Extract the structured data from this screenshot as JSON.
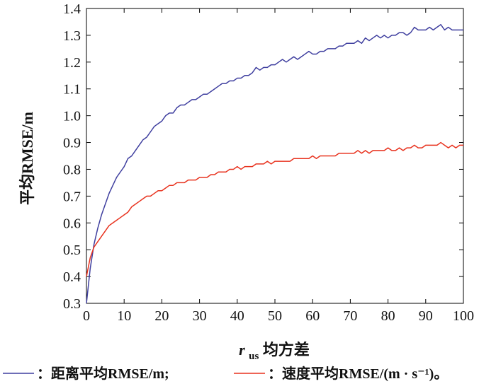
{
  "chart_data": {
    "type": "line",
    "xlabel_main": "r",
    "xlabel_sub": "us",
    "xlabel_rest": "均方差",
    "ylabel": "平均RMSE/m",
    "xlim": [
      0,
      100
    ],
    "ylim": [
      0.3,
      1.4
    ],
    "x_ticks": [
      0,
      10,
      20,
      30,
      40,
      50,
      60,
      70,
      80,
      90,
      100
    ],
    "x_tick_labels": [
      "0",
      "10",
      "20",
      "30",
      "40",
      "50",
      "60",
      "70",
      "80",
      "90",
      "100"
    ],
    "y_ticks": [
      0.3,
      0.4,
      0.5,
      0.6,
      0.7,
      0.8,
      0.9,
      1.0,
      1.1,
      1.2,
      1.3,
      1.4
    ],
    "y_tick_labels": [
      "0.3",
      "0.4",
      "0.5",
      "0.6",
      "0.7",
      "0.8",
      "0.9",
      "1.0",
      "1.1",
      "1.2",
      "1.3",
      "1.4"
    ],
    "grid": false,
    "legend_position": "bottom",
    "series": [
      {
        "name": "：距离平均RMSE/m;",
        "color": "#3f3f9f",
        "x": [
          0,
          1,
          2,
          3,
          4,
          5,
          6,
          7,
          8,
          9,
          10,
          11,
          12,
          13,
          14,
          15,
          16,
          17,
          18,
          19,
          20,
          21,
          22,
          23,
          24,
          25,
          26,
          27,
          28,
          29,
          30,
          31,
          32,
          33,
          34,
          35,
          36,
          37,
          38,
          39,
          40,
          41,
          42,
          43,
          44,
          45,
          46,
          47,
          48,
          49,
          50,
          51,
          52,
          53,
          54,
          55,
          56,
          57,
          58,
          59,
          60,
          61,
          62,
          63,
          64,
          65,
          66,
          67,
          68,
          69,
          70,
          71,
          72,
          73,
          74,
          75,
          76,
          77,
          78,
          79,
          80,
          81,
          82,
          83,
          84,
          85,
          86,
          87,
          88,
          89,
          90,
          91,
          92,
          93,
          94,
          95,
          96,
          97,
          98,
          99,
          100
        ],
        "values": [
          0.3,
          0.43,
          0.52,
          0.58,
          0.63,
          0.67,
          0.71,
          0.74,
          0.77,
          0.79,
          0.81,
          0.84,
          0.85,
          0.87,
          0.89,
          0.91,
          0.92,
          0.94,
          0.96,
          0.97,
          0.98,
          1.0,
          1.01,
          1.01,
          1.03,
          1.04,
          1.04,
          1.05,
          1.06,
          1.06,
          1.07,
          1.08,
          1.08,
          1.09,
          1.1,
          1.11,
          1.12,
          1.12,
          1.13,
          1.13,
          1.14,
          1.14,
          1.15,
          1.15,
          1.16,
          1.18,
          1.17,
          1.18,
          1.18,
          1.19,
          1.19,
          1.2,
          1.21,
          1.2,
          1.21,
          1.22,
          1.21,
          1.22,
          1.23,
          1.24,
          1.23,
          1.23,
          1.24,
          1.24,
          1.25,
          1.25,
          1.25,
          1.26,
          1.26,
          1.27,
          1.27,
          1.27,
          1.28,
          1.27,
          1.29,
          1.28,
          1.29,
          1.3,
          1.29,
          1.3,
          1.29,
          1.3,
          1.3,
          1.31,
          1.31,
          1.3,
          1.31,
          1.33,
          1.32,
          1.32,
          1.32,
          1.33,
          1.32,
          1.33,
          1.34,
          1.32,
          1.33,
          1.32,
          1.32,
          1.32,
          1.32
        ]
      },
      {
        "name": "：速度平均RMSE/(m · s⁻¹)。",
        "color": "#e8321e",
        "x": [
          0,
          1,
          2,
          3,
          4,
          5,
          6,
          7,
          8,
          9,
          10,
          11,
          12,
          13,
          14,
          15,
          16,
          17,
          18,
          19,
          20,
          21,
          22,
          23,
          24,
          25,
          26,
          27,
          28,
          29,
          30,
          31,
          32,
          33,
          34,
          35,
          36,
          37,
          38,
          39,
          40,
          41,
          42,
          43,
          44,
          45,
          46,
          47,
          48,
          49,
          50,
          51,
          52,
          53,
          54,
          55,
          56,
          57,
          58,
          59,
          60,
          61,
          62,
          63,
          64,
          65,
          66,
          67,
          68,
          69,
          70,
          71,
          72,
          73,
          74,
          75,
          76,
          77,
          78,
          79,
          80,
          81,
          82,
          83,
          84,
          85,
          86,
          87,
          88,
          89,
          90,
          91,
          92,
          93,
          94,
          95,
          96,
          97,
          98,
          99,
          100
        ],
        "values": [
          0.4,
          0.47,
          0.51,
          0.53,
          0.55,
          0.57,
          0.59,
          0.6,
          0.61,
          0.62,
          0.63,
          0.64,
          0.66,
          0.67,
          0.68,
          0.69,
          0.7,
          0.7,
          0.71,
          0.72,
          0.72,
          0.73,
          0.74,
          0.74,
          0.75,
          0.75,
          0.75,
          0.76,
          0.76,
          0.76,
          0.77,
          0.77,
          0.77,
          0.78,
          0.78,
          0.79,
          0.79,
          0.79,
          0.8,
          0.8,
          0.81,
          0.8,
          0.81,
          0.81,
          0.81,
          0.82,
          0.82,
          0.82,
          0.83,
          0.82,
          0.83,
          0.83,
          0.83,
          0.83,
          0.83,
          0.84,
          0.84,
          0.84,
          0.84,
          0.84,
          0.85,
          0.84,
          0.85,
          0.85,
          0.85,
          0.85,
          0.85,
          0.86,
          0.86,
          0.86,
          0.86,
          0.86,
          0.87,
          0.86,
          0.87,
          0.86,
          0.87,
          0.87,
          0.87,
          0.87,
          0.88,
          0.87,
          0.87,
          0.88,
          0.87,
          0.88,
          0.88,
          0.89,
          0.88,
          0.88,
          0.89,
          0.89,
          0.89,
          0.89,
          0.9,
          0.89,
          0.88,
          0.89,
          0.88,
          0.89,
          0.89
        ]
      }
    ]
  }
}
